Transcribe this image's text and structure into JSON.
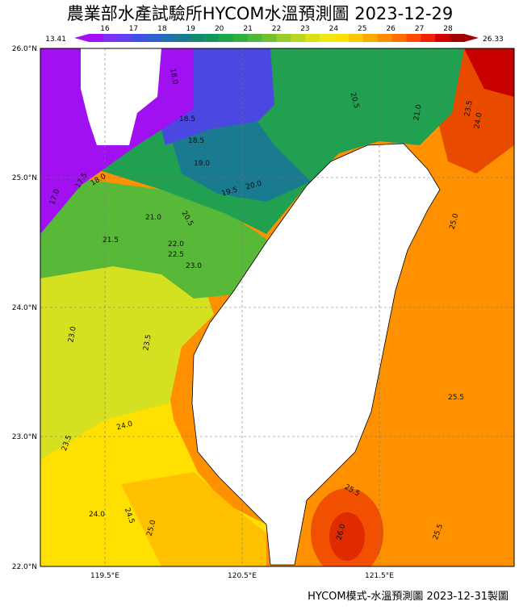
{
  "header": {
    "title": "農業部水產試驗所HYCOM水溫預測圖 2023-12-29"
  },
  "colorbar": {
    "min_label": "13.41",
    "max_label": "26.33",
    "ticks": [
      16,
      17,
      18,
      19,
      20,
      21,
      22,
      23,
      24,
      25,
      26,
      27,
      28
    ],
    "colors": [
      "#a010f0",
      "#8030f0",
      "#6040f0",
      "#4050e0",
      "#3060d0",
      "#2070b0",
      "#1a7a90",
      "#138a70",
      "#10985a",
      "#18a848",
      "#30b040",
      "#50b838",
      "#70c030",
      "#98cc28",
      "#b8d820",
      "#d8e018",
      "#f0e810",
      "#ffe000",
      "#ffc800",
      "#ffaa00",
      "#ff8c00",
      "#ff6e00",
      "#ff4a00",
      "#f02000",
      "#d00000",
      "#a00000"
    ]
  },
  "map": {
    "lat_labels": [
      "26.0°N",
      "25.0°N",
      "24.0°N",
      "23.0°N",
      "22.0°N"
    ],
    "lon_labels": [
      "119.5°E",
      "120.5°E",
      "121.5°E"
    ],
    "contour_labels": [
      "18.0",
      "18.5",
      "18.5",
      "19.0",
      "19.5",
      "20.0",
      "20.5",
      "21.0",
      "23.5",
      "24.0",
      "21.0",
      "20.5",
      "21.5",
      "22.0",
      "22.5",
      "23.0",
      "23.5",
      "23.0",
      "24.0",
      "23.5",
      "24.0",
      "24.5",
      "25.0",
      "25.5",
      "25.0",
      "25.5",
      "26.0",
      "25.5",
      "17.5",
      "18.0",
      "17.0"
    ]
  },
  "footer": "HYCOM模式-水溫預測圖 2023-12-31製圖"
}
